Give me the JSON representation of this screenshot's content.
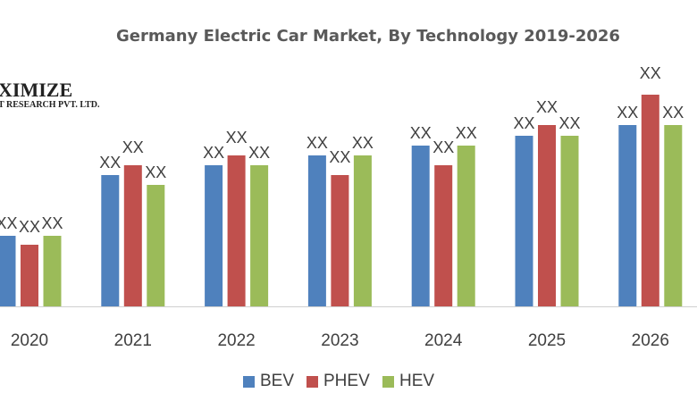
{
  "chart_data": {
    "type": "bar",
    "title": "Germany Electric Car Market, By Technology 2019-2026",
    "categories": [
      "2020",
      "2021",
      "2022",
      "2023",
      "2024",
      "2025",
      "2026"
    ],
    "series": [
      {
        "name": "BEV",
        "color": "#4f81bd",
        "values": [
          79,
          147,
          158,
          169,
          180,
          191,
          203
        ]
      },
      {
        "name": "PHEV",
        "color": "#c0504d",
        "values": [
          69,
          158,
          169,
          147,
          158,
          203,
          237
        ]
      },
      {
        "name": "HEV",
        "color": "#9bbb59",
        "values": [
          79,
          136,
          158,
          169,
          180,
          191,
          203
        ]
      }
    ],
    "data_label": "XX",
    "ylim": [
      0,
      260
    ],
    "grid": false,
    "legend": "bottom",
    "value_note_unit": "relative (no y-axis shown)"
  },
  "logo": {
    "line1": "XIMIZE",
    "line2": "T RESEARCH PVT. LTD."
  }
}
